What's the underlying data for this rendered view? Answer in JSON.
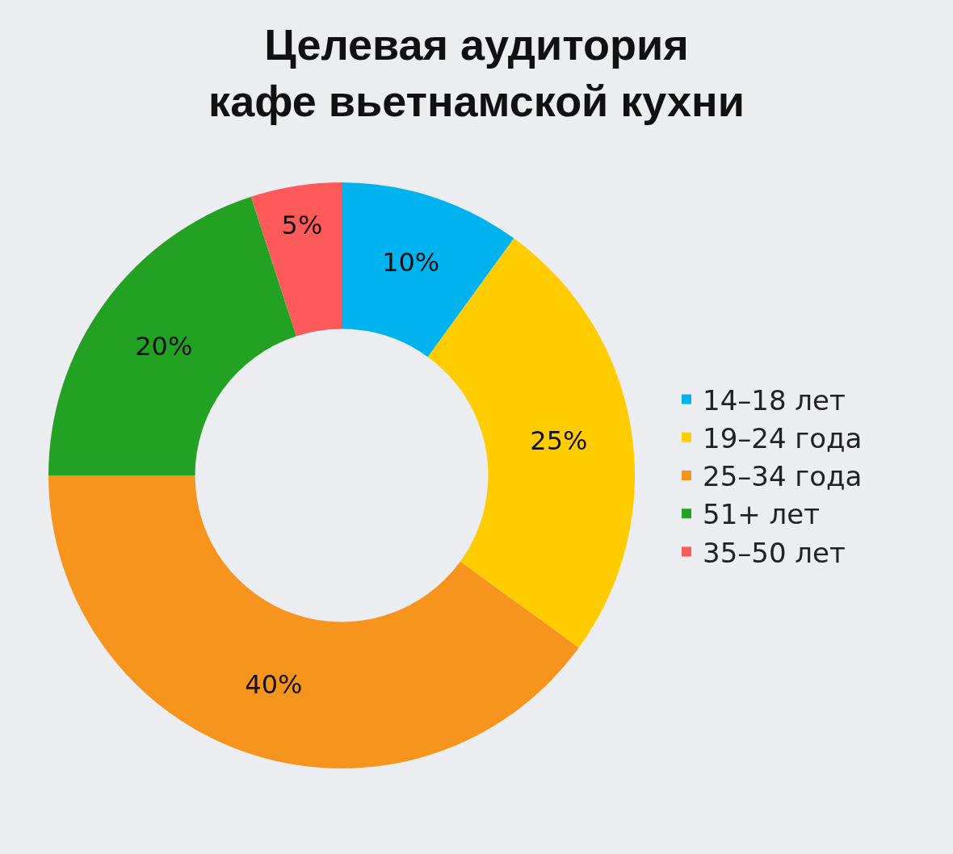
{
  "chart_data": {
    "type": "donut",
    "title": "Целевая аудитория\nкафе вьетнамской кухни",
    "categories": [
      "14–18 лет",
      "19–24 года",
      "25–34 года",
      "51+ лет",
      "35–50 лет"
    ],
    "values": [
      10,
      25,
      40,
      20,
      5
    ],
    "value_labels": [
      "10%",
      "25%",
      "40%",
      "20%",
      "5%"
    ],
    "colors": [
      "#00b2ee",
      "#ffcc00",
      "#f7941d",
      "#22a122",
      "#ff5a5a"
    ],
    "legend": "right"
  }
}
